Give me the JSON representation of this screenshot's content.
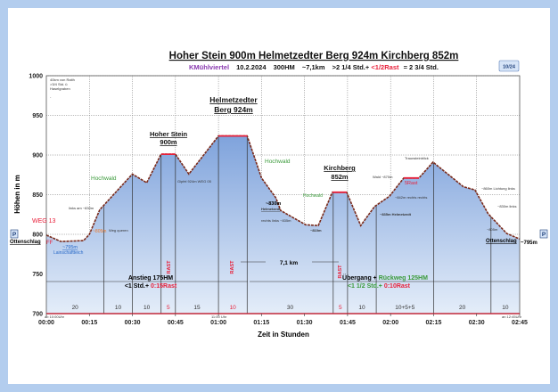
{
  "header": {
    "title": "Hoher Stein 900m  Helmetzedter Berg 924m  Kirchberg 852m",
    "subtitle_region": "KMühlviertel",
    "subtitle_date": "10.2.2024",
    "subtitle_hm": "300HM",
    "subtitle_km": "~7,1km",
    "subtitle_time": ">2 1/4 Std.+",
    "subtitle_rest": "<1/2Rast",
    "subtitle_total": "=  2 3/4 Std.",
    "page_badge": "10/24"
  },
  "colors": {
    "fill_top": "#7fa3dc",
    "fill_bottom": "#e4edf9",
    "profile": "#7a2a1a",
    "rest": "#e8203a",
    "frame": "#b3cdee",
    "rest_text": "#e8203a",
    "forest_text": "#3a9a3a",
    "height_text": "#f07a2a"
  },
  "chart_data": {
    "type": "area",
    "title": "Hoher Stein 900m  Helmetzedter Berg 924m  Kirchberg 852m",
    "xlabel": "Zeit in Stunden",
    "ylabel": "Höhen in m",
    "xlim_minutes": [
      0,
      165
    ],
    "ylim": [
      700,
      1000
    ],
    "grid": true,
    "y_ticks": [
      "700",
      "750",
      "800",
      "850",
      "900",
      "950",
      "1000"
    ],
    "x_ticks": [
      "00:00",
      "00:15",
      "00:30",
      "00:45",
      "01:00",
      "01:15",
      "01:30",
      "01:45",
      "02:00",
      "02:15",
      "02:30",
      "02:45"
    ],
    "profile": [
      [
        0,
        799
      ],
      [
        5,
        791
      ],
      [
        13,
        792
      ],
      [
        15,
        800
      ],
      [
        18.6,
        831
      ],
      [
        30,
        876
      ],
      [
        35,
        865
      ],
      [
        40,
        901
      ],
      [
        45,
        901
      ],
      [
        49.7,
        876
      ],
      [
        60,
        924
      ],
      [
        70,
        924
      ],
      [
        75,
        871
      ],
      [
        80,
        846
      ],
      [
        81.7,
        830
      ],
      [
        90.4,
        812
      ],
      [
        94.8,
        811
      ],
      [
        99.7,
        853
      ],
      [
        104.7,
        853
      ],
      [
        109.6,
        811
      ],
      [
        114.4,
        835
      ],
      [
        119.6,
        848
      ],
      [
        124.6,
        871
      ],
      [
        129.9,
        871
      ],
      [
        134.8,
        891
      ],
      [
        145.4,
        860
      ],
      [
        149.4,
        856
      ],
      [
        154,
        826
      ],
      [
        160.5,
        801
      ],
      [
        165,
        794
      ]
    ],
    "rest_segments": [
      [
        40,
        45
      ],
      [
        60,
        70
      ],
      [
        99.7,
        104.7
      ],
      [
        124.6,
        129.9
      ]
    ],
    "segment_dividers_minutes": [
      20,
      30,
      40,
      45,
      60,
      70,
      100,
      105,
      115,
      135,
      155
    ],
    "segment_durations": [
      {
        "mid": 10,
        "label": "20",
        "rest": false
      },
      {
        "mid": 25,
        "label": "10",
        "rest": false
      },
      {
        "mid": 35,
        "label": "10",
        "rest": false
      },
      {
        "mid": 42.5,
        "label": "5",
        "rest": true
      },
      {
        "mid": 52.5,
        "label": "15",
        "rest": false
      },
      {
        "mid": 65,
        "label": "10",
        "rest": true
      },
      {
        "mid": 85,
        "label": "30",
        "rest": false
      },
      {
        "mid": 102.5,
        "label": "5",
        "rest": true
      },
      {
        "mid": 110,
        "label": "10",
        "rest": false
      },
      {
        "mid": 125,
        "label": "10+5+5",
        "rest": false
      },
      {
        "mid": 145,
        "label": "20",
        "rest": false
      },
      {
        "mid": 160,
        "label": "10",
        "rest": false
      }
    ]
  },
  "peaks": {
    "hoher_stein_1": "Hoher Stein",
    "hoher_stein_2": "900m",
    "helmetzedter_1": "Helmetzedter",
    "helmetzedter_2": "Berg 924m",
    "kirchberg_1": "Kirchberg",
    "kirchberg_2": "852m"
  },
  "annotations": {
    "note_top_1": "40km von Raith",
    "note_top_2": ">3/4 Std. ü",
    "note_top_3": "Haselgraben",
    "note_top_4": "-",
    "weg13": "WEG 13",
    "ff": "FF",
    "parking": "P",
    "parking_right": "P",
    "start_place": "Ottenschlag",
    "end_place": "Ottenschlag",
    "end_height": "~795m",
    "teich_height": "~795m",
    "teich_name": "Lainschaftteich",
    "hochwald_1": "Hochwald",
    "hochwald_2": "Hochwald",
    "hochwald_3": "Hochwald",
    "links_830": "links am ~830m",
    "h805": "~805m",
    "weg_queren": "Weg queren",
    "gipfel_note": "Gipfel 924m  WEG 05",
    "helmetzedt_h": "~830m",
    "helmetzedt_name": "Helmetzedt",
    "rechts_835": "rechts links ~835m",
    "h810": "~810m",
    "wald_870": "Wald ~870m",
    "rast5": "5Rast",
    "traunstein": "Traunsteinblick",
    "h835_helm": "~835m Helmetzedt",
    "h842": "~842m rechts rechts",
    "h860": "~860m Lichtung links",
    "h830_links": "~830m links",
    "h805_end": "~805m",
    "km": "7,1 km",
    "ascent_1": "Anstieg 175HM",
    "ascent_2a": "<1 Std.+ ",
    "ascent_2b": "0:15Rast",
    "return_1a": "Übergang + ",
    "return_1b": "Rückweg 125HM",
    "return_2a": "<1 1/2 Std.+ ",
    "return_2b": "0:10Rast",
    "rast": "RAST",
    "start_time": "ab 10:00Uhr",
    "mid_time": "11:00 Uhr",
    "end_time": "an 12:45Uhr"
  }
}
